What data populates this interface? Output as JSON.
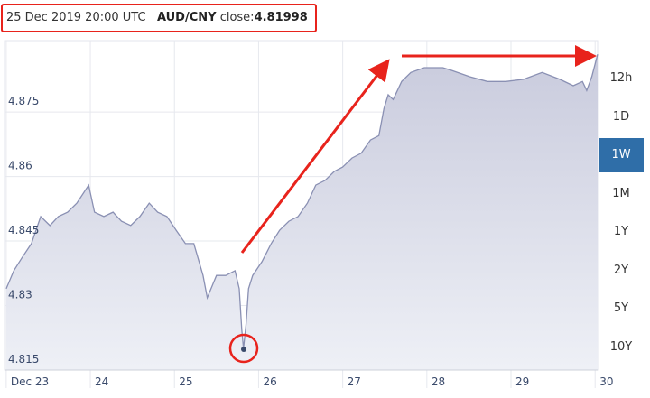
{
  "header": {
    "timestamp": "25 Dec 2019 20:00 UTC",
    "pair": "AUD/CNY",
    "close_label": "close:",
    "close_value": "4.81998"
  },
  "range_buttons": [
    "12h",
    "1D",
    "1W",
    "1M",
    "1Y",
    "2Y",
    "5Y",
    "10Y"
  ],
  "selected_range": "1W",
  "chart_data": {
    "type": "area",
    "color": "#8a90b3",
    "fill": "#d8dae8",
    "grid": true,
    "x": [
      23.0,
      23.09,
      23.19,
      23.3,
      23.41,
      23.52,
      23.62,
      23.73,
      23.84,
      23.98,
      24.05,
      24.16,
      24.27,
      24.37,
      24.48,
      24.59,
      24.7,
      24.8,
      24.91,
      25.02,
      25.13,
      25.23,
      25.34,
      25.39,
      25.5,
      25.61,
      25.72,
      25.77,
      25.8,
      25.82,
      25.85,
      25.88,
      25.93,
      26.04,
      26.15,
      26.25,
      26.36,
      26.47,
      26.58,
      26.68,
      26.79,
      26.9,
      27.0,
      27.11,
      27.22,
      27.33,
      27.43,
      27.49,
      27.54,
      27.6,
      27.65,
      27.7,
      27.81,
      27.97,
      28.19,
      28.29,
      28.51,
      28.72,
      28.94,
      29.15,
      29.37,
      29.58,
      29.74,
      29.85,
      29.9,
      29.96,
      30.03
    ],
    "values": [
      4.8339,
      4.8381,
      4.8412,
      4.8444,
      4.8507,
      4.8486,
      4.8507,
      4.8517,
      4.8538,
      4.858,
      4.8517,
      4.8507,
      4.8517,
      4.8496,
      4.8486,
      4.8507,
      4.8538,
      4.8517,
      4.8507,
      4.8475,
      4.8444,
      4.8444,
      4.837,
      4.8318,
      4.837,
      4.837,
      4.8381,
      4.8339,
      4.8244,
      4.82,
      4.8255,
      4.8339,
      4.837,
      4.8402,
      4.8444,
      4.8475,
      4.8496,
      4.8507,
      4.8538,
      4.858,
      4.8591,
      4.8612,
      4.8622,
      4.8643,
      4.8654,
      4.8685,
      4.8695,
      4.8758,
      4.879,
      4.8779,
      4.88,
      4.8821,
      4.8842,
      4.8853,
      4.8853,
      4.8847,
      4.8832,
      4.8821,
      4.8821,
      4.8826,
      4.8842,
      4.8826,
      4.8811,
      4.8821,
      4.88,
      4.8832,
      4.8884
    ],
    "xlim": [
      22.98,
      30.03
    ],
    "xticks": [
      {
        "value": 23,
        "label": "Dec 23"
      },
      24,
      25,
      26,
      27,
      28,
      29,
      30
    ],
    "ylim": [
      4.815,
      4.8895
    ],
    "yticks": [
      4.815,
      4.83,
      4.845,
      4.86,
      4.875
    ]
  }
}
